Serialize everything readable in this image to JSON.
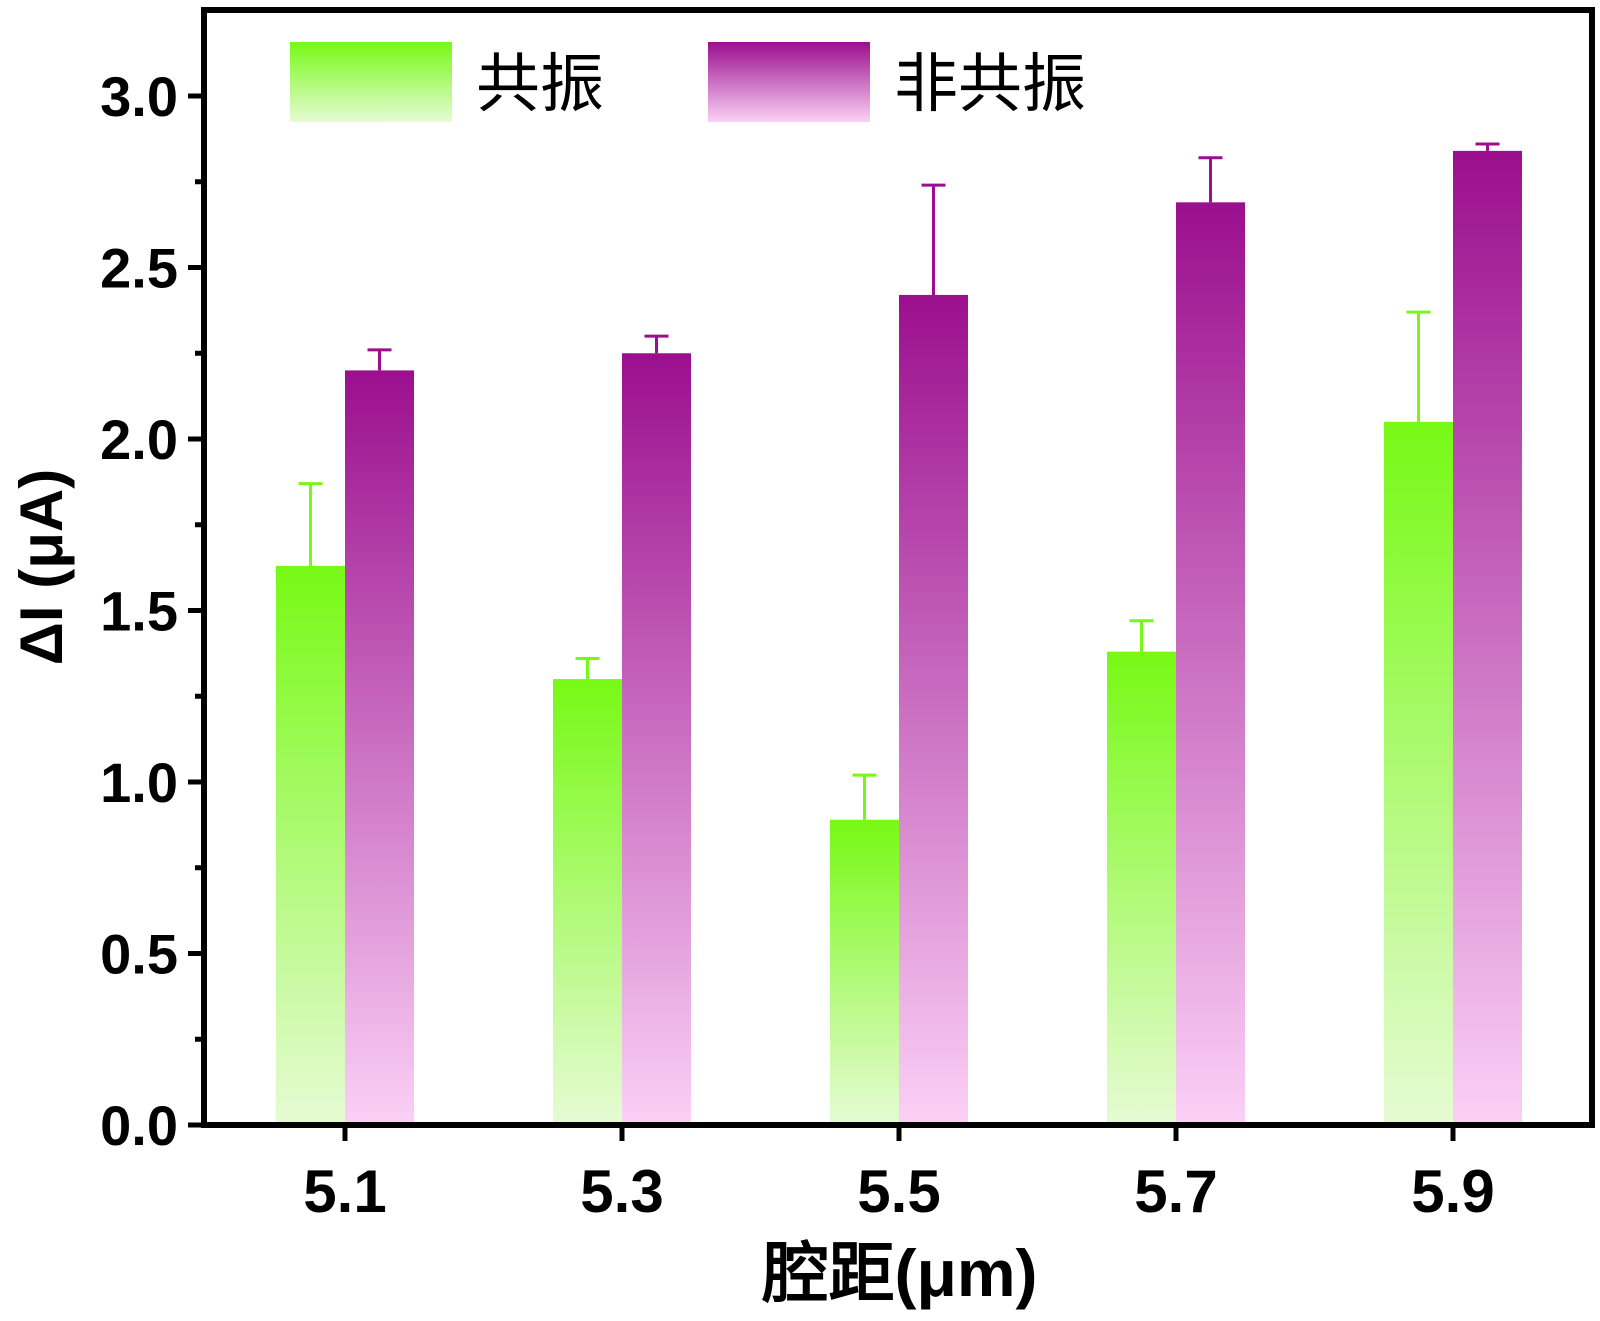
{
  "chart_data": {
    "type": "bar",
    "categories": [
      "5.1",
      "5.3",
      "5.5",
      "5.7",
      "5.9"
    ],
    "series": [
      {
        "name": "共振",
        "color": "#77f915",
        "values": [
          1.63,
          1.3,
          0.89,
          1.38,
          2.05
        ],
        "errors": [
          0.24,
          0.06,
          0.13,
          0.09,
          0.32
        ]
      },
      {
        "name": "非共振",
        "color": "#9b0f8e",
        "values": [
          2.2,
          2.25,
          2.42,
          2.69,
          2.84
        ],
        "errors": [
          0.06,
          0.05,
          0.32,
          0.13,
          0.02
        ]
      }
    ],
    "xlabel": "腔距(μm)",
    "ylabel": "ΔI (μA)",
    "ylim": [
      0,
      3.25
    ],
    "yticks": [
      "0.0",
      "0.5",
      "1.0",
      "1.5",
      "2.0",
      "2.5",
      "3.0"
    ],
    "legend_position": "top-left",
    "grid": false
  }
}
